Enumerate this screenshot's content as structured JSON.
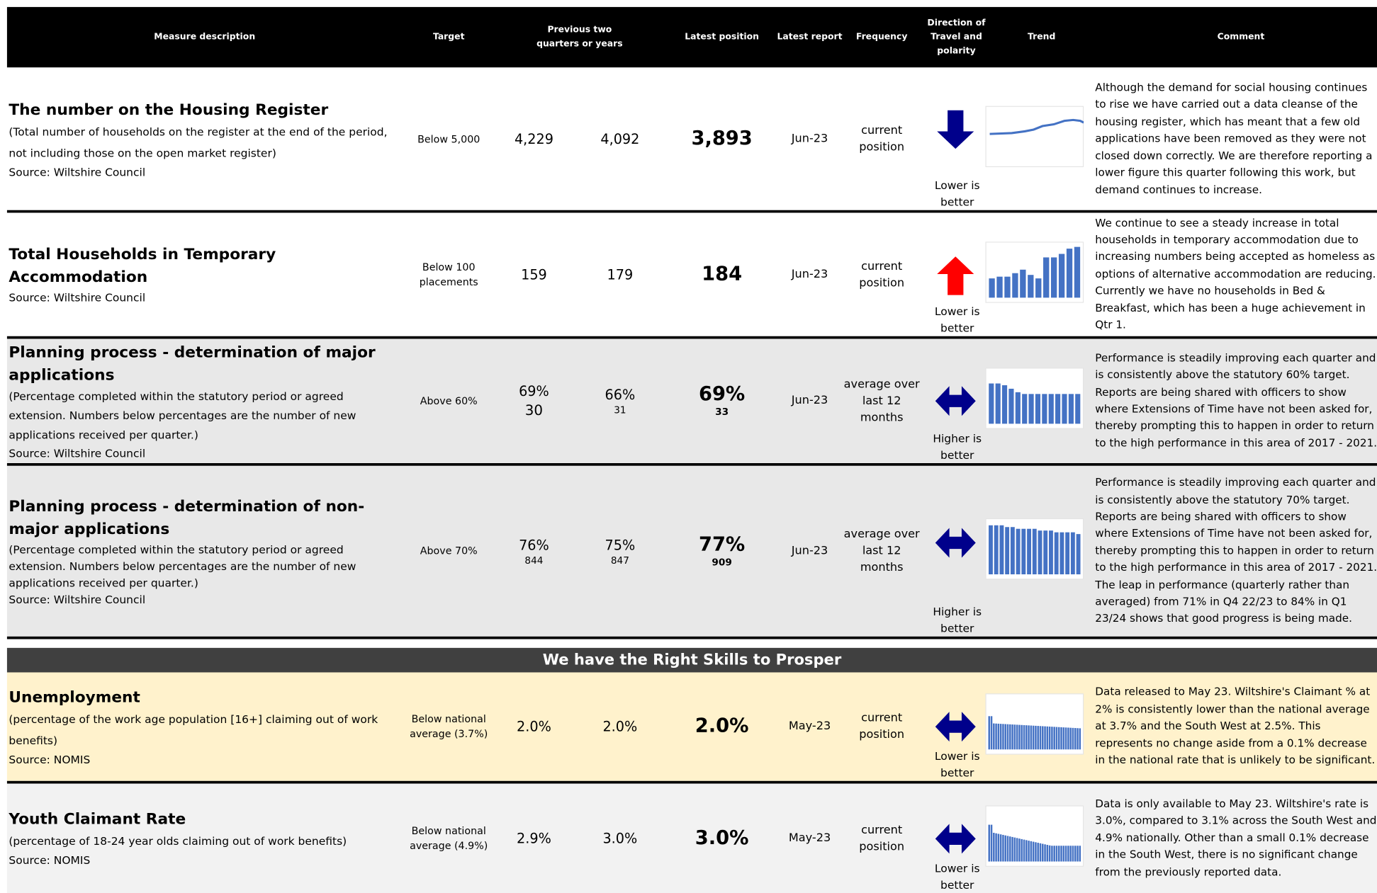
{
  "header": {
    "measure": "Measure description",
    "target": "Target",
    "previous": "Previous two quarters or years",
    "latest_position": "Latest position",
    "latest_report": "Latest report",
    "frequency": "Frequency",
    "direction": "Direction of Travel and polarity",
    "trend": "Trend",
    "comment": "Comment"
  },
  "rows": [
    {
      "title": "The number on the Housing Register",
      "description": "(Total number of households on the register at the end of the period, not including those on the open market register)",
      "source": "Source: Wiltshire Council",
      "target": "Below 5,000",
      "previous": [
        {
          "value": "4,229"
        },
        {
          "value": "4,092"
        }
      ],
      "latest": {
        "value": "3,893"
      },
      "report": "Jun-23",
      "frequency": "current position",
      "polarity": "Lower is better",
      "comment": "Although the demand for social housing continues to rise we have carried out a data cleanse of the housing register, which has meant that a few old applications have been removed as they were not closed down correctly. We are therefore reporting a lower figure this quarter following this work, but demand continues to increase."
    },
    {
      "title": "Total Households in Temporary Accommodation",
      "source": "Source: Wiltshire Council",
      "target": "Below 100 placements",
      "previous": [
        {
          "value": "159"
        },
        {
          "value": "179"
        }
      ],
      "latest": {
        "value": "184"
      },
      "report": "Jun-23",
      "frequency": "current position",
      "polarity": "Lower is better",
      "comment": "We continue to see a steady increase in total households in temporary accommodation due to increasing numbers being accepted as homeless as options of alternative accommodation are reducing. Currently we have no households in Bed & Breakfast, which has been a huge achievement in Qtr 1."
    },
    {
      "title": "Planning process - determination of major applications",
      "description": "(Percentage completed within the statutory period or agreed extension. Numbers below percentages are the number of new applications received per quarter.)",
      "source": "Source: Wiltshire Council",
      "target": "Above 60%",
      "previous": [
        {
          "value": "69%",
          "sub": "30"
        },
        {
          "value": "66%",
          "sub": "31"
        }
      ],
      "latest": {
        "value": "69%",
        "sub": "33"
      },
      "report": "Jun-23",
      "frequency": "average over last 12 months",
      "polarity": "Higher is better",
      "comment": "Performance is steadily improving each quarter and is consistently above the statutory 60% target. Reports are being shared with officers to show where Extensions of Time have not been asked for, thereby prompting this to happen in order to return to the high performance in this area of 2017 - 2021."
    },
    {
      "title": "Planning process - determination of non-major applications",
      "description": "(Percentage completed within the statutory period or agreed extension. Numbers below percentages are the number of new applications received per quarter.)",
      "source": "Source: Wiltshire Council",
      "target": "Above 70%",
      "previous": [
        {
          "value": "76%",
          "sub": "844"
        },
        {
          "value": "75%",
          "sub": "847"
        }
      ],
      "latest": {
        "value": "77%",
        "sub": "909"
      },
      "report": "Jun-23",
      "frequency": "average over last 12 months",
      "polarity": "Higher is better",
      "comment": "Performance is steadily improving each quarter and is consistently above the statutory 70% target. Reports are being shared with officers to show where Extensions of Time have not been asked for, thereby prompting this to happen in order to return to the high performance in this area of 2017 - 2021. The leap in performance (quarterly rather than averaged) from 71% in Q4 22/23 to 84% in Q1 23/24 shows that good progress is being made."
    },
    {
      "title": "Unemployment",
      "description": "(percentage of the work age population [16+] claiming out of work benefits)",
      "source": "Source: NOMIS",
      "target": "Below national average (3.7%)",
      "previous": [
        {
          "value": "2.0%"
        },
        {
          "value": "2.0%"
        }
      ],
      "latest": {
        "value": "2.0%"
      },
      "report": "May-23",
      "frequency": "current position",
      "polarity": "Lower is better",
      "comment": "Data released to May 23. Wiltshire's Claimant % at 2% is consistently lower than the national average at 3.7% and the South West at 2.5%. This represents no change aside from a 0.1% decrease in the national rate that is unlikely to be significant."
    },
    {
      "title": "Youth Claimant Rate",
      "description": "(percentage of 18-24 year olds claiming out of work benefits)",
      "source": "Source: NOMIS",
      "target": "Below national average (4.9%)",
      "previous": [
        {
          "value": "2.9%"
        },
        {
          "value": "3.0%"
        }
      ],
      "latest": {
        "value": "3.0%"
      },
      "report": "May-23",
      "frequency": "current position",
      "polarity": "Lower is better",
      "comment": "Data is only available to May 23. Wiltshire's rate is 3.0%, compared to 3.1% across the South West and 4.9% nationally. Other than a small 0.1% decrease in the South West, there is no significant change from the previously reported data."
    }
  ],
  "section": "We have the Right Skills to Prosper"
}
